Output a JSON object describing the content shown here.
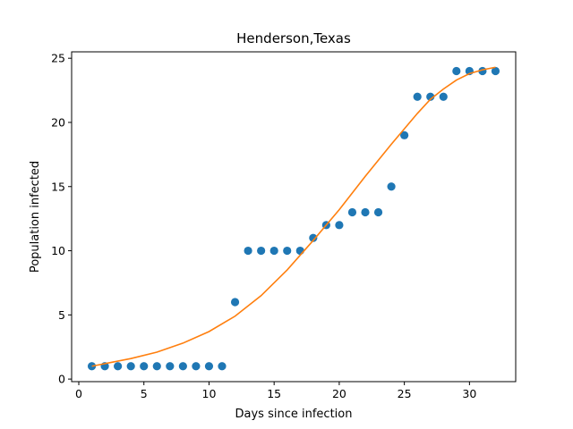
{
  "chart_data": {
    "type": "scatter",
    "title": "Henderson,Texas",
    "xlabel": "Days since infection",
    "ylabel": "Population infected",
    "xlim": [
      -0.55,
      33.55
    ],
    "ylim": [
      -0.2,
      25.5
    ],
    "xticks": [
      0,
      5,
      10,
      15,
      20,
      25,
      30
    ],
    "yticks": [
      0,
      5,
      10,
      15,
      20,
      25
    ],
    "grid": false,
    "series": [
      {
        "kind": "points",
        "color": "#1f77b4",
        "x": [
          1,
          2,
          3,
          4,
          5,
          6,
          7,
          8,
          9,
          10,
          11,
          12,
          13,
          14,
          15,
          16,
          17,
          18,
          19,
          20,
          21,
          22,
          23,
          24,
          25,
          26,
          27,
          28,
          29,
          30,
          31,
          32
        ],
        "y": [
          1,
          1,
          1,
          1,
          1,
          1,
          1,
          1,
          1,
          1,
          1,
          6,
          10,
          10,
          10,
          10,
          10,
          11,
          12,
          12,
          13,
          13,
          13,
          15,
          19,
          22,
          22,
          22,
          24,
          24,
          24,
          24
        ]
      },
      {
        "kind": "fit-line",
        "color": "#ff7f0e",
        "x": [
          1,
          2,
          4,
          6,
          8,
          10,
          12,
          14,
          16,
          18,
          20,
          22,
          24,
          25,
          26,
          27,
          28,
          29,
          30,
          31,
          32
        ],
        "y": [
          1.0,
          1.2,
          1.6,
          2.1,
          2.8,
          3.7,
          4.9,
          6.5,
          8.5,
          10.8,
          13.2,
          15.8,
          18.3,
          19.5,
          20.7,
          21.8,
          22.6,
          23.3,
          23.8,
          24.1,
          24.3
        ]
      }
    ]
  }
}
